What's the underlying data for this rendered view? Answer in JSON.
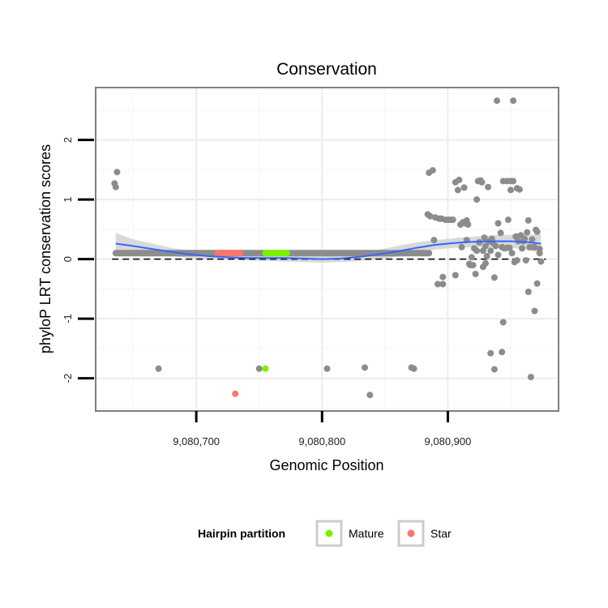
{
  "chart_data": {
    "type": "scatter",
    "title": "Conservation",
    "xlabel": "Genomic Position",
    "ylabel": "phyloP LRT conservation scores",
    "xlim": [
      9080620,
      9080988
    ],
    "ylim": [
      -2.55,
      2.88
    ],
    "x_ticks": [
      9080700,
      9080800,
      9080900
    ],
    "x_tick_labels": [
      "9,080,700",
      "9,080,800",
      "9,080,900"
    ],
    "y_ticks": [
      -2,
      -1,
      0,
      1,
      2
    ],
    "y_tick_labels": [
      "-2",
      "-1",
      "0",
      "1",
      "2"
    ],
    "reference_line_y": 0,
    "grid": true,
    "colors": {
      "other": "#8c8c8c",
      "mature": "#7cf000",
      "star": "#f8766d",
      "smooth": "#3366ff",
      "ribbon": "#cccccc"
    },
    "legend": {
      "title": "Hairpin partition",
      "position": "bottom",
      "entries": [
        {
          "label": "Mature",
          "color": "#7cf000"
        },
        {
          "label": "Star",
          "color": "#f8766d"
        }
      ]
    },
    "baseline_band": {
      "x_start": 9080636,
      "x_end": 9080885,
      "y": 0.1,
      "note": "dense run of points at ~0.1"
    },
    "mature_band": {
      "x_start": 9080755,
      "x_end": 9080772,
      "y": 0.1
    },
    "star_band": {
      "x_start": 9080717,
      "x_end": 9080735,
      "y": 0.1
    },
    "series": [
      {
        "name": "Other",
        "color": "#8c8c8c",
        "points": [
          [
            9080635,
            1.27
          ],
          [
            9080636,
            1.21
          ],
          [
            9080637,
            1.46
          ],
          [
            9080670,
            -1.84
          ],
          [
            9080750,
            -1.84
          ],
          [
            9080804,
            -1.84
          ],
          [
            9080834,
            -1.82
          ],
          [
            9080838,
            -2.28
          ],
          [
            9080871,
            -1.82
          ],
          [
            9080873,
            -1.84
          ],
          [
            9080884,
            0.75
          ],
          [
            9080885,
            1.45
          ],
          [
            9080886,
            0.72
          ],
          [
            9080888,
            1.49
          ],
          [
            9080889,
            0.32
          ],
          [
            9080890,
            0.7
          ],
          [
            9080892,
            -0.42
          ],
          [
            9080893,
            0.68
          ],
          [
            9080894,
            0.68
          ],
          [
            9080895,
            0.68
          ],
          [
            9080896,
            -0.3
          ],
          [
            9080896,
            -0.42
          ],
          [
            9080898,
            0.66
          ],
          [
            9080900,
            0.66
          ],
          [
            9080901,
            0.66
          ],
          [
            9080903,
            0.66
          ],
          [
            9080904,
            0.66
          ],
          [
            9080906,
            1.29
          ],
          [
            9080906,
            -0.27
          ],
          [
            9080908,
            1.16
          ],
          [
            9080909,
            1.33
          ],
          [
            9080910,
            0.58
          ],
          [
            9080911,
            0.2
          ],
          [
            9080912,
            0.62
          ],
          [
            9080913,
            1.2
          ],
          [
            9080914,
            0.6
          ],
          [
            9080915,
            0.65
          ],
          [
            9080915,
            0.32
          ],
          [
            9080916,
            0.58
          ],
          [
            9080917,
            -0.08
          ],
          [
            9080918,
            -0.1
          ],
          [
            9080919,
            0.03
          ],
          [
            9080920,
            -0.1
          ],
          [
            9080921,
            0.18
          ],
          [
            9080922,
            -0.25
          ],
          [
            9080923,
            0.14
          ],
          [
            9080923,
            1.0
          ],
          [
            9080924,
            1.31
          ],
          [
            9080925,
            0.28
          ],
          [
            9080926,
            1.32
          ],
          [
            9080927,
            1.29
          ],
          [
            9080928,
            0.14
          ],
          [
            9080928,
            -0.13
          ],
          [
            9080929,
            0.36
          ],
          [
            9080930,
            0.22
          ],
          [
            9080930,
            -0.07
          ],
          [
            9080931,
            0.05
          ],
          [
            9080932,
            1.21
          ],
          [
            9080933,
            0.3
          ],
          [
            9080934,
            0.14
          ],
          [
            9080934,
            -1.58
          ],
          [
            9080935,
            0.34
          ],
          [
            9080936,
            0.27
          ],
          [
            9080937,
            -0.31
          ],
          [
            9080937,
            -1.85
          ],
          [
            9080938,
            0.22
          ],
          [
            9080939,
            2.66
          ],
          [
            9080940,
            0.6
          ],
          [
            9080940,
            0.07
          ],
          [
            9080942,
            0.44
          ],
          [
            9080943,
            0.2
          ],
          [
            9080943,
            -1.56
          ],
          [
            9080944,
            1.31
          ],
          [
            9080944,
            -1.06
          ],
          [
            9080945,
            0.18
          ],
          [
            9080947,
            1.31
          ],
          [
            9080947,
            0.19
          ],
          [
            9080948,
            0.66
          ],
          [
            9080949,
            0.19
          ],
          [
            9080950,
            1.31
          ],
          [
            9080950,
            1.16
          ],
          [
            9080951,
            0.1
          ],
          [
            9080952,
            2.66
          ],
          [
            9080952,
            1.31
          ],
          [
            9080953,
            -0.05
          ],
          [
            9080954,
            0.38
          ],
          [
            9080955,
            1.19
          ],
          [
            9080955,
            -0.02
          ],
          [
            9080956,
            0.3
          ],
          [
            9080957,
            1.17
          ],
          [
            9080958,
            0.4
          ],
          [
            9080959,
            0.18
          ],
          [
            9080960,
            0.3
          ],
          [
            9080961,
            0.34
          ],
          [
            9080962,
            -0.02
          ],
          [
            9080963,
            0.45
          ],
          [
            9080964,
            0.65
          ],
          [
            9080964,
            -0.55
          ],
          [
            9080965,
            0.2
          ],
          [
            9080966,
            -1.98
          ],
          [
            9080967,
            0.33
          ],
          [
            9080968,
            0.2
          ],
          [
            9080969,
            0.2
          ],
          [
            9080969,
            -0.87
          ],
          [
            9080970,
            0.49
          ],
          [
            9080971,
            0.46
          ],
          [
            9080971,
            -0.41
          ],
          [
            9080973,
            0.17
          ],
          [
            9080973,
            0.1
          ],
          [
            9080974,
            -0.04
          ]
        ]
      },
      {
        "name": "Mature",
        "color": "#7cf000",
        "points": [
          [
            9080755,
            -1.84
          ]
        ]
      },
      {
        "name": "Star",
        "color": "#f8766d",
        "points": [
          [
            9080731,
            -2.26
          ]
        ]
      }
    ],
    "smooth_curve": {
      "x": [
        9080636,
        9080650,
        9080665,
        9080680,
        9080695,
        9080710,
        9080725,
        9080740,
        9080755,
        9080770,
        9080785,
        9080800,
        9080815,
        9080830,
        9080845,
        9080860,
        9080875,
        9080890,
        9080905,
        9080920,
        9080935,
        9080950,
        9080960,
        9080974
      ],
      "y": [
        0.26,
        0.22,
        0.17,
        0.12,
        0.08,
        0.05,
        0.03,
        0.02,
        0.02,
        0.02,
        0.01,
        0.0,
        0.01,
        0.04,
        0.08,
        0.13,
        0.19,
        0.24,
        0.27,
        0.29,
        0.3,
        0.3,
        0.29,
        0.26
      ],
      "lower": [
        0.12,
        0.12,
        0.08,
        0.05,
        0.02,
        0.0,
        -0.01,
        -0.02,
        -0.03,
        -0.04,
        -0.05,
        -0.06,
        -0.05,
        -0.03,
        0.0,
        0.04,
        0.1,
        0.16,
        0.19,
        0.2,
        0.2,
        0.19,
        0.17,
        0.1
      ],
      "upper": [
        0.44,
        0.33,
        0.26,
        0.19,
        0.14,
        0.1,
        0.07,
        0.06,
        0.07,
        0.08,
        0.07,
        0.06,
        0.07,
        0.1,
        0.16,
        0.22,
        0.28,
        0.32,
        0.35,
        0.38,
        0.4,
        0.41,
        0.41,
        0.42
      ]
    }
  }
}
